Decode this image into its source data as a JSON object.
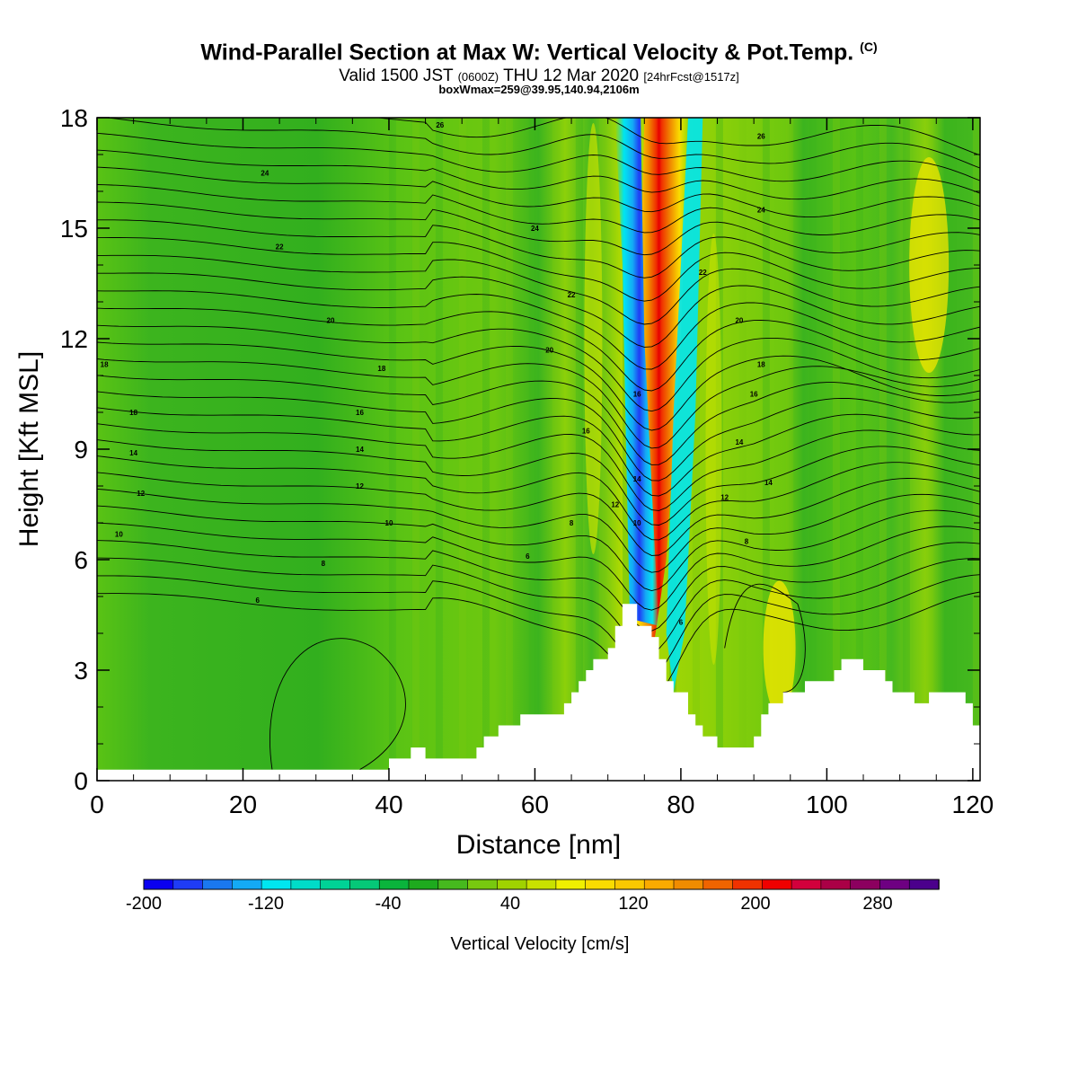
{
  "title": "Wind-Parallel Section at Max W: Vertical Velocity & Pot.Temp.",
  "copyright": "(C)",
  "valid_prefix": "Valid 1500 JST",
  "valid_utc": "(0600Z)",
  "valid_date": "THU 12 Mar 2020",
  "forecast": "[24hrFcst@1517z]",
  "box_wmax": "boxWmax=259@39.95,140.94,2106m",
  "colorbar": {
    "label": "Vertical Velocity [cm/s]",
    "tick_labels": [
      "-200",
      "-120",
      "-40",
      "40",
      "120",
      "200",
      "280"
    ],
    "colors": [
      "#0a00f0",
      "#1f3cf5",
      "#1a78f0",
      "#14aaf5",
      "#00e6f0",
      "#00dcc8",
      "#00d296",
      "#05c878",
      "#0ab43c",
      "#1eaa1e",
      "#46b91e",
      "#78c80f",
      "#a0d200",
      "#c8e100",
      "#f0f000",
      "#fadc00",
      "#fac800",
      "#faaa00",
      "#f08c00",
      "#f06400",
      "#f03200",
      "#f00000",
      "#d2003c",
      "#aa0046",
      "#8c005f",
      "#6e0082",
      "#4b008c"
    ]
  },
  "chart_data": {
    "type": "heatmap",
    "title": "Wind-Parallel Section at Max W: Vertical Velocity & Pot.Temp.",
    "xlabel": "Distance [nm]",
    "ylabel": "Height [Kft MSL]",
    "xlim": [
      0,
      121
    ],
    "ylim": [
      0,
      18
    ],
    "x_ticks": [
      0,
      20,
      40,
      60,
      80,
      100,
      120
    ],
    "y_ticks": [
      0,
      3,
      6,
      9,
      12,
      15,
      18
    ],
    "series": [
      {
        "name": "Vertical Velocity [cm/s]",
        "units": "cm/s",
        "max_value": 259
      },
      {
        "name": "Pot.Temp.",
        "contour_labels": [
          "6",
          "8",
          "10",
          "12",
          "14",
          "16",
          "18",
          "20",
          "22",
          "24",
          "26"
        ]
      }
    ],
    "updraft_core": {
      "x": 79,
      "y_range": [
        3,
        18
      ],
      "value": 259
    },
    "downdraft_core": {
      "x": 75,
      "y_range": [
        4.5,
        18
      ],
      "value": -200
    },
    "terrain": [
      [
        0,
        0.3
      ],
      [
        40,
        0.3
      ],
      [
        40,
        0.6
      ],
      [
        43,
        0.6
      ],
      [
        43,
        0.9
      ],
      [
        45,
        0.9
      ],
      [
        45,
        0.6
      ],
      [
        52,
        0.6
      ],
      [
        52,
        0.9
      ],
      [
        53,
        0.9
      ],
      [
        53,
        1.2
      ],
      [
        55,
        1.2
      ],
      [
        55,
        1.5
      ],
      [
        58,
        1.5
      ],
      [
        58,
        1.8
      ],
      [
        64,
        1.8
      ],
      [
        64,
        2.1
      ],
      [
        65,
        2.1
      ],
      [
        65,
        2.4
      ],
      [
        66,
        2.4
      ],
      [
        66,
        2.7
      ],
      [
        67,
        2.7
      ],
      [
        67,
        3.0
      ],
      [
        68,
        3.0
      ],
      [
        68,
        3.3
      ],
      [
        70,
        3.3
      ],
      [
        70,
        3.6
      ],
      [
        71,
        3.6
      ],
      [
        71,
        4.2
      ],
      [
        72,
        4.2
      ],
      [
        72,
        4.8
      ],
      [
        74,
        4.8
      ],
      [
        74,
        4.2
      ],
      [
        76,
        4.2
      ],
      [
        76,
        3.9
      ],
      [
        77,
        3.9
      ],
      [
        77,
        3.3
      ],
      [
        78,
        3.3
      ],
      [
        78,
        2.7
      ],
      [
        79,
        2.7
      ],
      [
        79,
        2.4
      ],
      [
        81,
        2.4
      ],
      [
        81,
        1.8
      ],
      [
        82,
        1.8
      ],
      [
        82,
        1.5
      ],
      [
        83,
        1.5
      ],
      [
        83,
        1.2
      ],
      [
        85,
        1.2
      ],
      [
        85,
        0.9
      ],
      [
        90,
        0.9
      ],
      [
        90,
        1.2
      ],
      [
        91,
        1.2
      ],
      [
        91,
        1.8
      ],
      [
        92,
        1.8
      ],
      [
        92,
        2.1
      ],
      [
        94,
        2.1
      ],
      [
        94,
        2.4
      ],
      [
        97,
        2.4
      ],
      [
        97,
        2.7
      ],
      [
        101,
        2.7
      ],
      [
        101,
        3.0
      ],
      [
        102,
        3.0
      ],
      [
        102,
        3.3
      ],
      [
        105,
        3.3
      ],
      [
        105,
        3.0
      ],
      [
        108,
        3.0
      ],
      [
        108,
        2.7
      ],
      [
        109,
        2.7
      ],
      [
        109,
        2.4
      ],
      [
        112,
        2.4
      ],
      [
        112,
        2.1
      ],
      [
        114,
        2.1
      ],
      [
        114,
        2.4
      ],
      [
        119,
        2.4
      ],
      [
        119,
        2.1
      ],
      [
        120,
        2.1
      ],
      [
        120,
        1.5
      ],
      [
        121,
        1.5
      ],
      [
        121,
        0
      ]
    ]
  }
}
